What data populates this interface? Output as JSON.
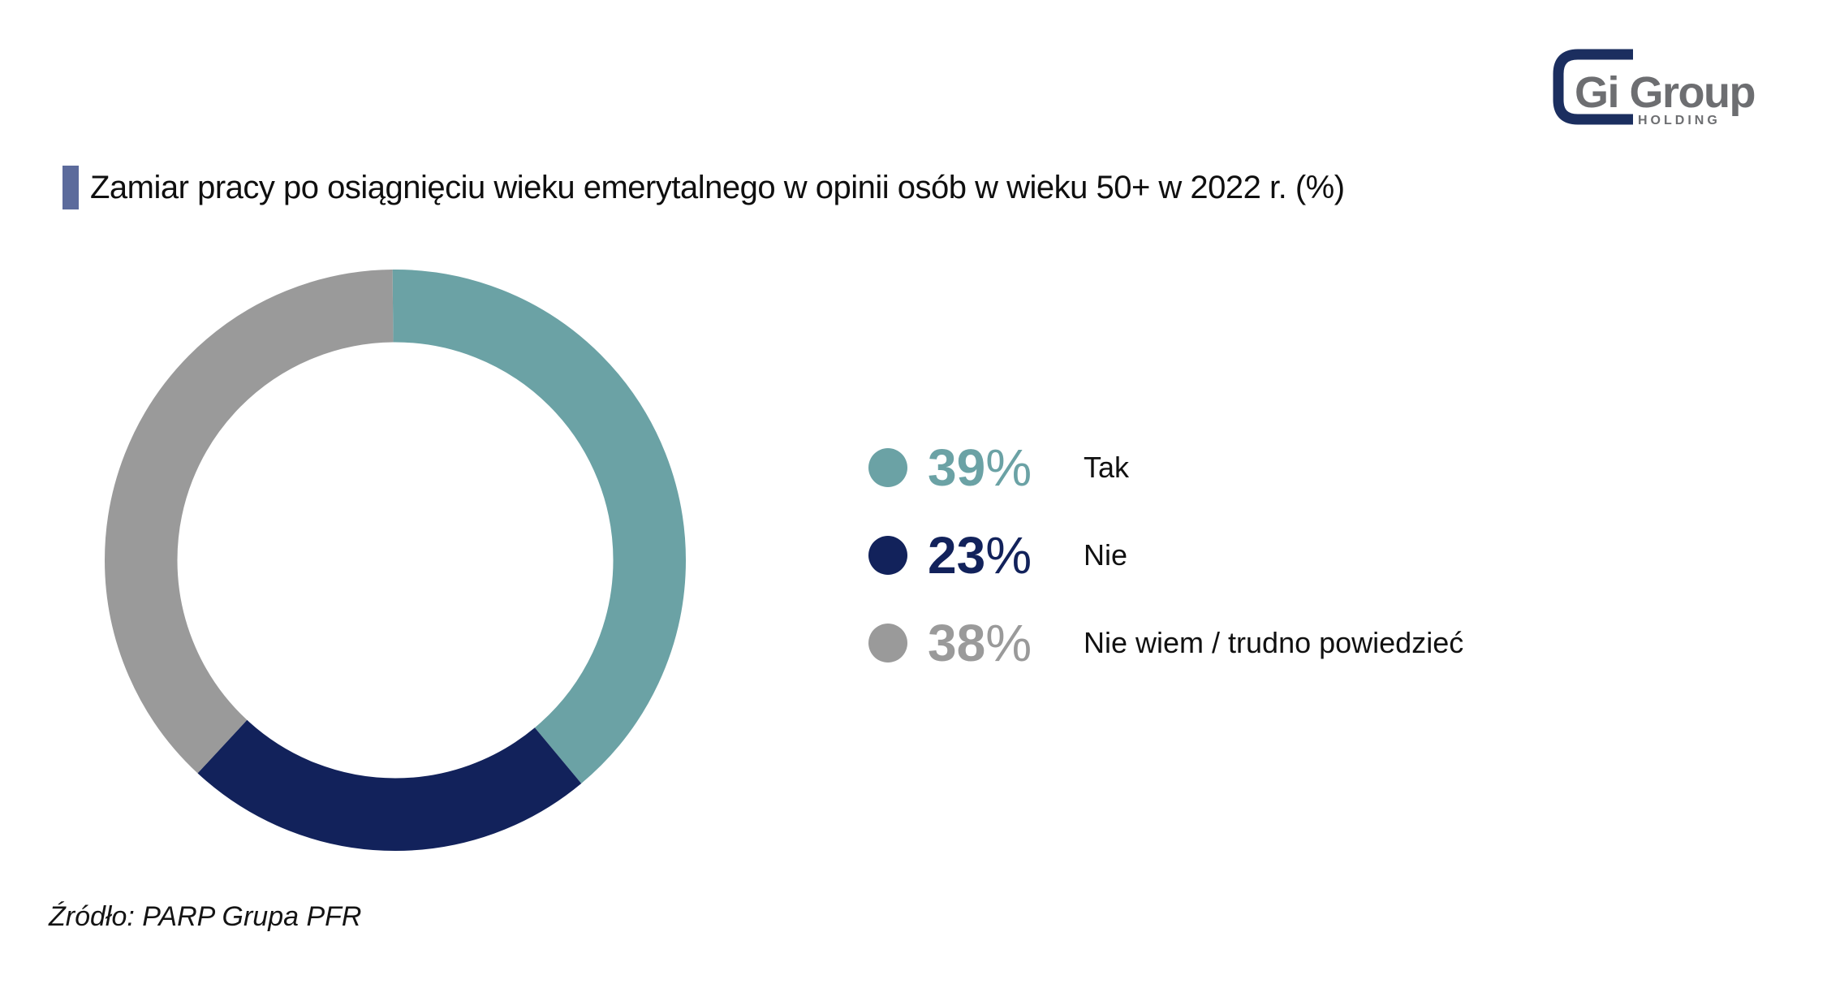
{
  "header": {
    "title": "Zamiar pracy po osiągnięciu wieku emerytalnego w opinii osób w wieku 50+ w 2022 r. (%)",
    "accent_color": "#5C6B9C"
  },
  "logo": {
    "brand": "Gi Group",
    "sub": "HOLDING",
    "bracket_color": "#1B2E5F",
    "text_color": "#6D6E71"
  },
  "chart_data": {
    "type": "pie",
    "variant": "donut",
    "title": "Zamiar pracy po osiągnięciu wieku emerytalnego w opinii osób w wieku 50+ w 2022 r. (%)",
    "unit": "%",
    "percent_symbol": "%",
    "start_angle_deg": 0,
    "direction": "clockwise",
    "hole_ratio": 0.75,
    "legend_position": "right",
    "series": [
      {
        "label": "Tak",
        "value": 39,
        "color": "#6BA2A5"
      },
      {
        "label": "Nie",
        "value": 23,
        "color": "#12225B"
      },
      {
        "label": "Nie wiem / trudno powiedzieć",
        "value": 38,
        "color": "#9A9A9A"
      }
    ]
  },
  "source": {
    "text": "Źródło: PARP Grupa PFR"
  }
}
